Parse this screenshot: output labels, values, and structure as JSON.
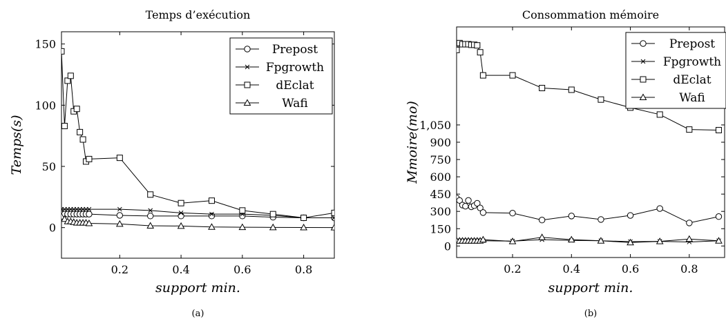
{
  "chart_data": [
    {
      "type": "line",
      "title": "Temps d’exécution",
      "xlabel": "support min.",
      "ylabel": "Temps(s)",
      "caption": "(a)",
      "xlim": [
        0.01,
        0.9
      ],
      "ylim": [
        -25,
        160
      ],
      "xticks": [
        0.2,
        0.4,
        0.6,
        0.8
      ],
      "xtick_labels": [
        "0.2",
        "0.4",
        "0.6",
        "0.8"
      ],
      "yticks": [
        0,
        50,
        100,
        150
      ],
      "ytick_labels": [
        "0",
        "50",
        "100",
        "150"
      ],
      "legend": "top-right",
      "series": [
        {
          "name": "Prepost",
          "marker": "circle",
          "x": [
            0.01,
            0.02,
            0.03,
            0.04,
            0.05,
            0.06,
            0.07,
            0.08,
            0.09,
            0.1,
            0.2,
            0.3,
            0.4,
            0.5,
            0.6,
            0.7,
            0.8,
            0.9
          ],
          "y": [
            11,
            11,
            11,
            11,
            11,
            11,
            11,
            11,
            11,
            11,
            10,
            9.5,
            9.5,
            9.5,
            9.5,
            8.5,
            8,
            8
          ]
        },
        {
          "name": "Fpgrowth",
          "marker": "cross",
          "x": [
            0.01,
            0.02,
            0.03,
            0.04,
            0.05,
            0.06,
            0.07,
            0.08,
            0.09,
            0.1,
            0.2,
            0.3,
            0.4,
            0.5,
            0.6,
            0.7,
            0.8,
            0.9
          ],
          "y": [
            15,
            15,
            15,
            15,
            15,
            15,
            15,
            15,
            15,
            15,
            15,
            14,
            12,
            11,
            11,
            10,
            8,
            8
          ]
        },
        {
          "name": "dEclat",
          "marker": "square",
          "x": [
            0.01,
            0.02,
            0.03,
            0.04,
            0.05,
            0.06,
            0.07,
            0.08,
            0.09,
            0.1,
            0.2,
            0.3,
            0.4,
            0.5,
            0.6,
            0.7,
            0.8,
            0.9
          ],
          "y": [
            144,
            83,
            120,
            124,
            95,
            97,
            78,
            72,
            54,
            56,
            57,
            27,
            20,
            22,
            14,
            11,
            8,
            12
          ]
        },
        {
          "name": "Wafi",
          "marker": "triangle",
          "x": [
            0.01,
            0.02,
            0.03,
            0.04,
            0.05,
            0.06,
            0.07,
            0.08,
            0.09,
            0.1,
            0.2,
            0.3,
            0.4,
            0.5,
            0.6,
            0.7,
            0.8,
            0.9
          ],
          "y": [
            9,
            7,
            5,
            5,
            4.5,
            4,
            4,
            4,
            4,
            3.5,
            3,
            1.5,
            1.3,
            0.5,
            0.3,
            0.2,
            0.1,
            0
          ]
        }
      ]
    },
    {
      "type": "line",
      "title": "Consommation mémoire",
      "xlabel": "support min.",
      "ylabel": "Mmoire(mo)",
      "caption": "(b)",
      "xlim": [
        0.01,
        0.92
      ],
      "ylim": [
        -100,
        1900
      ],
      "xticks": [
        0.2,
        0.4,
        0.6,
        0.8
      ],
      "xtick_labels": [
        "0.2",
        "0.4",
        "0.6",
        "0.8"
      ],
      "yticks": [
        0,
        150,
        300,
        450,
        600,
        750,
        900,
        1050
      ],
      "ytick_labels": [
        "0",
        "150",
        "300",
        "450",
        "600",
        "750",
        "900",
        "1,050"
      ],
      "legend": "top-right",
      "series": [
        {
          "name": "Prepost",
          "marker": "circle",
          "x": [
            0.01,
            0.02,
            0.03,
            0.04,
            0.05,
            0.06,
            0.07,
            0.08,
            0.09,
            0.1,
            0.2,
            0.3,
            0.4,
            0.5,
            0.6,
            0.7,
            0.8,
            0.9
          ],
          "y": [
            415,
            395,
            355,
            345,
            395,
            340,
            350,
            370,
            330,
            290,
            285,
            225,
            260,
            230,
            265,
            325,
            200,
            255
          ]
        },
        {
          "name": "Fpgrowth",
          "marker": "cross",
          "x": [
            0.01,
            0.02,
            0.03,
            0.04,
            0.05,
            0.06,
            0.07,
            0.08,
            0.09,
            0.1,
            0.2,
            0.3,
            0.4,
            0.5,
            0.6,
            0.7,
            0.8,
            0.9
          ],
          "y": [
            45,
            45,
            45,
            45,
            45,
            45,
            45,
            45,
            45,
            45,
            42,
            55,
            48,
            45,
            38,
            40,
            35,
            45
          ]
        },
        {
          "name": "Wafi",
          "marker": "triangle",
          "x": [
            0.01,
            0.02,
            0.03,
            0.04,
            0.05,
            0.06,
            0.07,
            0.08,
            0.09,
            0.1,
            0.2,
            0.3,
            0.4,
            0.5,
            0.6,
            0.7,
            0.8,
            0.9
          ],
          "y": [
            45,
            45,
            45,
            45,
            45,
            45,
            45,
            45,
            45,
            55,
            40,
            75,
            55,
            45,
            30,
            40,
            60,
            45
          ]
        },
        {
          "name": "dEclat",
          "marker": "square",
          "x": [
            0.01,
            0.02,
            0.03,
            0.04,
            0.05,
            0.06,
            0.07,
            0.08,
            0.09,
            0.1,
            0.2,
            0.3,
            0.4,
            0.5,
            0.6,
            0.7,
            0.8,
            0.9
          ],
          "y": [
            1700,
            1760,
            1750,
            1750,
            1750,
            1745,
            1745,
            1740,
            1680,
            1480,
            1480,
            1370,
            1355,
            1270,
            1200,
            1140,
            1010,
            1005
          ]
        }
      ]
    }
  ]
}
